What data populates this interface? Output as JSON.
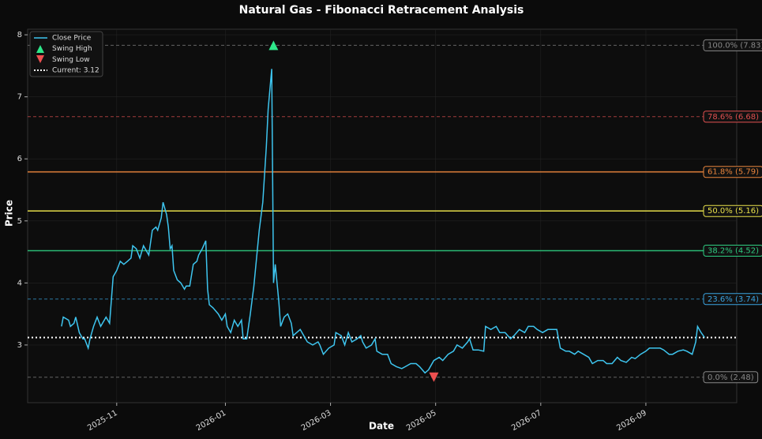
{
  "chart_data": {
    "type": "line",
    "title": "Natural Gas - Fibonacci Retracement Analysis",
    "x_label": "Date",
    "y_label": "Price",
    "xlim": [
      -50,
      348
    ],
    "ylim": [
      2.07,
      8.09
    ],
    "yticks": [
      3,
      4,
      5,
      6,
      7,
      8
    ],
    "xticks": [
      {
        "value": 0,
        "label": "2025-11"
      },
      {
        "value": 61,
        "label": "2026-01"
      },
      {
        "value": 120,
        "label": "2026-03"
      },
      {
        "value": 179,
        "label": "2026-05"
      },
      {
        "value": 238,
        "label": "2026-07"
      },
      {
        "value": 297,
        "label": "2026-09"
      }
    ],
    "grid": true,
    "legend": "upper left",
    "series": [
      {
        "name": "Close Price",
        "color": "#3ec5ef",
        "x": [
          -31,
          -30,
          -27,
          -26,
          -24,
          -23,
          -21,
          -19,
          -18,
          -16,
          -15,
          -13,
          -11,
          -9,
          -8,
          -6,
          -4,
          -2,
          0,
          2,
          4,
          6,
          8,
          9,
          11,
          13,
          15,
          16,
          18,
          20,
          22,
          23,
          25,
          26,
          28,
          29,
          30,
          31,
          32,
          34,
          36,
          38,
          39,
          41,
          43,
          45,
          46,
          48,
          50,
          51,
          52,
          54,
          57,
          59,
          61,
          62,
          64,
          66,
          68,
          70,
          71,
          73,
          75,
          77,
          80,
          82,
          84,
          85,
          87,
          88,
          89,
          91,
          92,
          94,
          96,
          98,
          99,
          101,
          103,
          105,
          107,
          110,
          113,
          114,
          116,
          119,
          122,
          123,
          126,
          128,
          130,
          132,
          135,
          137,
          138,
          140,
          143,
          145,
          146,
          149,
          152,
          154,
          157,
          160,
          162,
          165,
          168,
          170,
          173,
          175,
          178,
          181,
          183,
          186,
          189,
          191,
          194,
          197,
          198,
          200,
          203,
          206,
          207,
          210,
          213,
          215,
          218,
          221,
          223,
          226,
          229,
          231,
          234,
          236,
          239,
          242,
          244,
          247,
          249,
          252,
          254,
          257,
          259,
          262,
          265,
          267,
          270,
          273,
          275,
          278,
          281,
          283,
          286,
          289,
          291,
          294,
          297,
          299,
          302,
          305,
          307,
          310,
          312,
          315,
          318,
          320,
          323,
          325,
          326,
          328,
          330
        ],
        "values": [
          3.3,
          3.45,
          3.4,
          3.3,
          3.35,
          3.45,
          3.2,
          3.1,
          3.1,
          2.95,
          3.1,
          3.3,
          3.45,
          3.3,
          3.35,
          3.45,
          3.35,
          4.1,
          4.2,
          4.35,
          4.3,
          4.35,
          4.4,
          4.6,
          4.55,
          4.4,
          4.6,
          4.55,
          4.45,
          4.85,
          4.9,
          4.85,
          5.05,
          5.3,
          5.1,
          4.9,
          4.55,
          4.6,
          4.2,
          4.05,
          4.0,
          3.9,
          3.95,
          3.95,
          4.3,
          4.35,
          4.45,
          4.55,
          4.68,
          3.9,
          3.65,
          3.6,
          3.5,
          3.4,
          3.5,
          3.3,
          3.2,
          3.4,
          3.3,
          3.4,
          3.1,
          3.1,
          3.5,
          3.95,
          4.85,
          5.3,
          6.2,
          6.8,
          7.45,
          4.0,
          4.3,
          3.7,
          3.3,
          3.45,
          3.5,
          3.35,
          3.15,
          3.2,
          3.25,
          3.15,
          3.05,
          3.0,
          3.05,
          3.0,
          2.85,
          2.95,
          3.0,
          3.2,
          3.15,
          3.0,
          3.2,
          3.05,
          3.1,
          3.15,
          3.05,
          2.95,
          3.0,
          3.1,
          2.9,
          2.85,
          2.85,
          2.7,
          2.65,
          2.62,
          2.65,
          2.7,
          2.7,
          2.65,
          2.55,
          2.6,
          2.75,
          2.8,
          2.75,
          2.85,
          2.9,
          3.0,
          2.95,
          3.05,
          3.1,
          2.92,
          2.92,
          2.9,
          3.3,
          3.25,
          3.3,
          3.2,
          3.2,
          3.1,
          3.15,
          3.25,
          3.2,
          3.3,
          3.3,
          3.25,
          3.2,
          3.25,
          3.25,
          3.25,
          2.95,
          2.9,
          2.9,
          2.85,
          2.9,
          2.85,
          2.8,
          2.7,
          2.75,
          2.75,
          2.7,
          2.7,
          2.8,
          2.75,
          2.72,
          2.8,
          2.78,
          2.85,
          2.9,
          2.95,
          2.95,
          2.95,
          2.92,
          2.85,
          2.85,
          2.9,
          2.92,
          2.9,
          2.85,
          3.05,
          3.3,
          3.2,
          3.12
        ]
      }
    ],
    "swing_high": {
      "name": "Swing High",
      "color": "#2ee88a",
      "x": 88,
      "value": 7.83
    },
    "swing_low": {
      "name": "Swing Low",
      "color": "#ee5050",
      "x": 178,
      "value": 2.48
    },
    "current": {
      "name": "Current: 3.12",
      "color": "#ffffff",
      "value": 3.12
    },
    "fib_levels": [
      {
        "label": "100.0% (7.83)",
        "value": 7.83,
        "color": "#888888",
        "style": "dashed"
      },
      {
        "label": "78.6% (6.68)",
        "value": 6.68,
        "color": "#e05050",
        "style": "dashed"
      },
      {
        "label": "61.8% (5.79)",
        "value": 5.79,
        "color": "#e8843c",
        "style": "solid"
      },
      {
        "label": "50.0% (5.16)",
        "value": 5.16,
        "color": "#e8e04a",
        "style": "solid"
      },
      {
        "label": "38.2% (4.52)",
        "value": 4.52,
        "color": "#2ecc80",
        "style": "solid"
      },
      {
        "label": "23.6% (3.74)",
        "value": 3.74,
        "color": "#3aa3e0",
        "style": "dashed"
      },
      {
        "label": "0.0% (2.48)",
        "value": 2.48,
        "color": "#888888",
        "style": "dashed"
      }
    ]
  }
}
